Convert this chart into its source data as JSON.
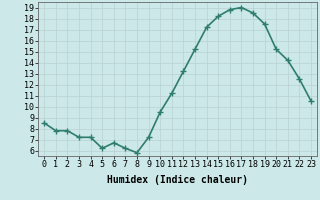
{
  "x": [
    0,
    1,
    2,
    3,
    4,
    5,
    6,
    7,
    8,
    9,
    10,
    11,
    12,
    13,
    14,
    15,
    16,
    17,
    18,
    19,
    20,
    21,
    22,
    23
  ],
  "y": [
    8.5,
    7.8,
    7.8,
    7.2,
    7.2,
    6.2,
    6.7,
    6.2,
    5.8,
    7.2,
    9.5,
    11.2,
    13.2,
    15.2,
    17.2,
    18.2,
    18.8,
    19.0,
    18.5,
    17.5,
    15.2,
    14.2,
    12.5,
    10.5
  ],
  "line_color": "#2e7d6e",
  "marker": "+",
  "marker_size": 4,
  "xlabel": "Humidex (Indice chaleur)",
  "xlabel_fontsize": 7,
  "xlim": [
    -0.5,
    23.5
  ],
  "ylim": [
    5.5,
    19.5
  ],
  "yticks": [
    6,
    7,
    8,
    9,
    10,
    11,
    12,
    13,
    14,
    15,
    16,
    17,
    18,
    19
  ],
  "xticks": [
    0,
    1,
    2,
    3,
    4,
    5,
    6,
    7,
    8,
    9,
    10,
    11,
    12,
    13,
    14,
    15,
    16,
    17,
    18,
    19,
    20,
    21,
    22,
    23
  ],
  "background_color": "#cce8e8",
  "grid_color": "#b8d0d0",
  "plot_bg_color": "#cce8e8",
  "tick_fontsize": 6,
  "line_width": 1.2
}
